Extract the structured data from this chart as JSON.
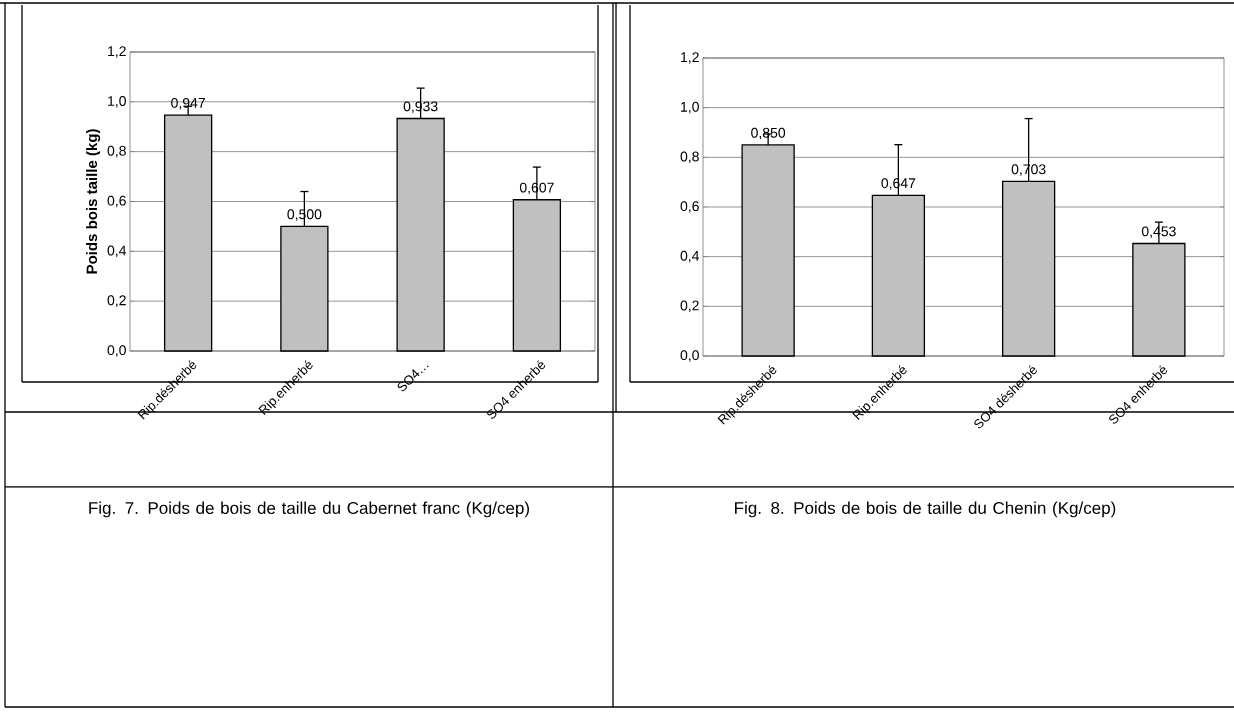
{
  "chart_data": [
    {
      "type": "bar",
      "ylabel": "Poids bois taille (kg)",
      "categories": [
        "Rip.désherbé",
        "Rip.enherbé",
        "SO4…",
        "SO4 enherbé"
      ],
      "values": [
        0.947,
        0.5,
        0.933,
        0.607
      ],
      "color": "#c0c0c0",
      "errors": [
        [
          0.947,
          0.982
        ],
        [
          0.5,
          0.64
        ],
        [
          0.933,
          1.055
        ],
        [
          0.607,
          0.738
        ]
      ],
      "value_labels": [
        "0,947",
        "0,500",
        "0,933",
        "0,607"
      ],
      "ylim": [
        0,
        1.2
      ],
      "yticks": [
        {
          "value": 0,
          "label": "0,0"
        },
        {
          "value": 0.2,
          "label": "0,2"
        },
        {
          "value": 0.4,
          "label": "0,4"
        },
        {
          "value": 0.6,
          "label": "0,6"
        },
        {
          "value": 0.8,
          "label": "0,8"
        },
        {
          "value": 1.0,
          "label": "1,0"
        },
        {
          "value": 1.2,
          "label": "1,2"
        }
      ],
      "grid": "y",
      "annotations": [
        "Fig. 7. Poids de bois de taille du Cabernet franc (Kg/cep)"
      ]
    },
    {
      "type": "bar",
      "categories": [
        "Rip.désherbé",
        "Rip.enherbé",
        "SO4 désherbé",
        "SO4 enherbé"
      ],
      "values": [
        0.85,
        0.647,
        0.703,
        0.453
      ],
      "color": "#c0c0c0",
      "errors": [
        [
          0.85,
          0.894
        ],
        [
          0.647,
          0.851
        ],
        [
          0.703,
          0.956
        ],
        [
          0.453,
          0.539
        ]
      ],
      "value_labels": [
        "0,850",
        "0,647",
        "0,703",
        "0,453"
      ],
      "ylim": [
        0,
        1.2
      ],
      "yticks": [
        {
          "value": 0,
          "label": "0,0"
        },
        {
          "value": 0.2,
          "label": "0,2"
        },
        {
          "value": 0.4,
          "label": "0,4"
        },
        {
          "value": 0.6,
          "label": "0,6"
        },
        {
          "value": 0.8,
          "label": "0,8"
        },
        {
          "value": 1.0,
          "label": "1,0"
        },
        {
          "value": 1.2,
          "label": "1,2"
        }
      ],
      "grid": "y",
      "annotations": [
        "Fig. 8. Poids de bois de taille du Chenin (Kg/cep)"
      ]
    }
  ]
}
